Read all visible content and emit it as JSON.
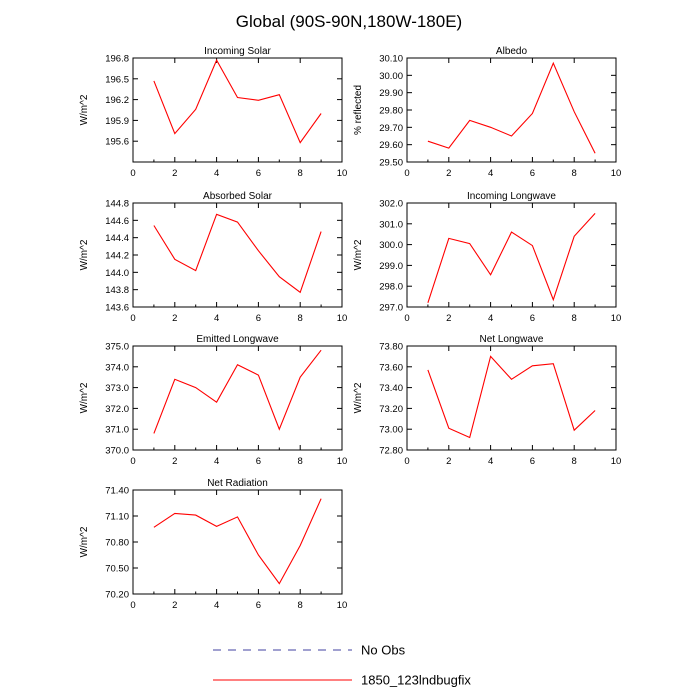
{
  "title": "Global (90S-90N,180W-180E)",
  "colors": {
    "model_line": "#ff0000",
    "obs_line": "#4040a0",
    "axis": "#000000"
  },
  "legend": {
    "entries": [
      {
        "label": "No Obs",
        "style": "dashed",
        "color": "#4040a0"
      },
      {
        "label": "1850_123lndbugfix",
        "style": "solid",
        "color": "#ff0000"
      }
    ]
  },
  "chart_data": [
    {
      "type": "line",
      "title": "Incoming Solar",
      "ylabel": "W/m^2",
      "xlim": [
        0,
        10
      ],
      "xticks": [
        "0",
        "2",
        "4",
        "6",
        "8",
        "10"
      ],
      "ylim": [
        195.3,
        196.8
      ],
      "yticks": [
        "195.6",
        "195.9",
        "196.2",
        "196.5",
        "196.8"
      ],
      "ytick_values": [
        195.6,
        195.9,
        196.2,
        196.5,
        196.8
      ],
      "series": [
        {
          "name": "1850_123lndbugfix",
          "x": [
            1,
            2,
            3,
            4,
            5,
            6,
            7,
            8,
            9
          ],
          "values": [
            196.47,
            195.71,
            196.06,
            196.77,
            196.23,
            196.19,
            196.27,
            195.58,
            196.0
          ]
        }
      ]
    },
    {
      "type": "line",
      "title": "Albedo",
      "ylabel": "% reflected",
      "xlim": [
        0,
        10
      ],
      "xticks": [
        "0",
        "2",
        "4",
        "6",
        "8",
        "10"
      ],
      "ylim": [
        29.5,
        30.1
      ],
      "yticks": [
        "29.50",
        "29.60",
        "29.70",
        "29.80",
        "29.90",
        "30.00",
        "30.10"
      ],
      "ytick_values": [
        29.5,
        29.6,
        29.7,
        29.8,
        29.9,
        30.0,
        30.1
      ],
      "series": [
        {
          "name": "1850_123lndbugfix",
          "x": [
            1,
            2,
            3,
            4,
            5,
            6,
            7,
            8,
            9
          ],
          "values": [
            29.62,
            29.58,
            29.74,
            29.7,
            29.65,
            29.78,
            30.07,
            29.79,
            29.55
          ]
        }
      ]
    },
    {
      "type": "line",
      "title": "Absorbed Solar",
      "ylabel": "W/m^2",
      "xlim": [
        0,
        10
      ],
      "xticks": [
        "0",
        "2",
        "4",
        "6",
        "8",
        "10"
      ],
      "ylim": [
        143.6,
        144.8
      ],
      "yticks": [
        "143.6",
        "143.8",
        "144.0",
        "144.2",
        "144.4",
        "144.6",
        "144.8"
      ],
      "ytick_values": [
        143.6,
        143.8,
        144.0,
        144.2,
        144.4,
        144.6,
        144.8
      ],
      "series": [
        {
          "name": "1850_123lndbugfix",
          "x": [
            1,
            2,
            3,
            4,
            5,
            6,
            7,
            8,
            9
          ],
          "values": [
            144.54,
            144.15,
            144.02,
            144.67,
            144.58,
            144.25,
            143.95,
            143.77,
            144.47
          ]
        }
      ]
    },
    {
      "type": "line",
      "title": "Incoming Longwave",
      "ylabel": "W/m^2",
      "xlim": [
        0,
        10
      ],
      "xticks": [
        "0",
        "2",
        "4",
        "6",
        "8",
        "10"
      ],
      "ylim": [
        297.0,
        302.0
      ],
      "yticks": [
        "297.0",
        "298.0",
        "299.0",
        "300.0",
        "301.0",
        "302.0"
      ],
      "ytick_values": [
        297,
        298,
        299,
        300,
        301,
        302
      ],
      "series": [
        {
          "name": "1850_123lndbugfix",
          "x": [
            1,
            2,
            3,
            4,
            5,
            6,
            7,
            8,
            9
          ],
          "values": [
            297.2,
            300.3,
            300.05,
            298.55,
            300.6,
            299.95,
            297.35,
            300.4,
            301.5
          ]
        }
      ]
    },
    {
      "type": "line",
      "title": "Emitted Longwave",
      "ylabel": "W/m^2",
      "xlim": [
        0,
        10
      ],
      "xticks": [
        "0",
        "2",
        "4",
        "6",
        "8",
        "10"
      ],
      "ylim": [
        370.0,
        375.0
      ],
      "yticks": [
        "370.0",
        "371.0",
        "372.0",
        "373.0",
        "374.0",
        "375.0"
      ],
      "ytick_values": [
        370,
        371,
        372,
        373,
        374,
        375
      ],
      "series": [
        {
          "name": "1850_123lndbugfix",
          "x": [
            1,
            2,
            3,
            4,
            5,
            6,
            7,
            8,
            9
          ],
          "values": [
            370.8,
            373.4,
            373.0,
            372.3,
            374.1,
            373.6,
            371.0,
            373.5,
            374.8
          ]
        }
      ]
    },
    {
      "type": "line",
      "title": "Net Longwave",
      "ylabel": "W/m^2",
      "xlim": [
        0,
        10
      ],
      "xticks": [
        "0",
        "2",
        "4",
        "6",
        "8",
        "10"
      ],
      "ylim": [
        72.8,
        73.8
      ],
      "yticks": [
        "72.80",
        "73.00",
        "73.20",
        "73.40",
        "73.60",
        "73.80"
      ],
      "ytick_values": [
        72.8,
        73.0,
        73.2,
        73.4,
        73.6,
        73.8
      ],
      "series": [
        {
          "name": "1850_123lndbugfix",
          "x": [
            1,
            2,
            3,
            4,
            5,
            6,
            7,
            8,
            9
          ],
          "values": [
            73.57,
            73.01,
            72.92,
            73.7,
            73.48,
            73.61,
            73.63,
            72.99,
            73.18
          ]
        }
      ]
    },
    {
      "type": "line",
      "title": "Net Radiation",
      "ylabel": "W/m^2",
      "xlim": [
        0,
        10
      ],
      "xticks": [
        "0",
        "2",
        "4",
        "6",
        "8",
        "10"
      ],
      "ylim": [
        70.2,
        71.4
      ],
      "yticks": [
        "70.20",
        "70.50",
        "70.80",
        "71.10",
        "71.40"
      ],
      "ytick_values": [
        70.2,
        70.5,
        70.8,
        71.1,
        71.4
      ],
      "series": [
        {
          "name": "1850_123lndbugfix",
          "x": [
            1,
            2,
            3,
            4,
            5,
            6,
            7,
            8,
            9
          ],
          "values": [
            70.97,
            71.13,
            71.11,
            70.98,
            71.09,
            70.65,
            70.32,
            70.76,
            71.3
          ]
        }
      ]
    }
  ]
}
